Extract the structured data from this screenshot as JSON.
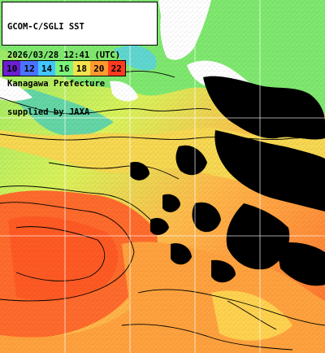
{
  "title_box": {
    "line1": "GCOM-C/SGLI SST",
    "line2": "2026/03/28 12:41 (UTC)",
    "line3": "Kanagawa Prefecture",
    "line4": "supplied by JAXA"
  },
  "legend": {
    "ticks": [
      {
        "label": "10",
        "color": "#6a1fd0"
      },
      {
        "label": "12",
        "color": "#4a73ff"
      },
      {
        "label": "14",
        "color": "#41c6ff"
      },
      {
        "label": "16",
        "color": "#7cf37a"
      },
      {
        "label": "18",
        "color": "#f2e34c"
      },
      {
        "label": "20",
        "color": "#ff9a2e"
      },
      {
        "label": "22",
        "color": "#ff3b1f"
      }
    ]
  },
  "colors": {
    "land": "#ffffff",
    "cloud": "#000000",
    "grid": "#ffffff",
    "contour": "#000000"
  }
}
